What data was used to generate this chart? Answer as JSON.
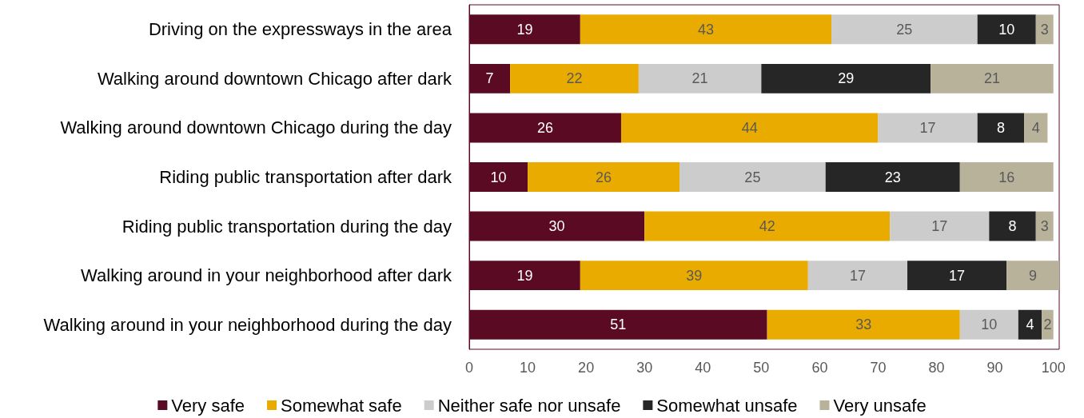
{
  "chart_data": {
    "type": "bar",
    "orientation": "horizontal",
    "stacked": true,
    "data_labels": true,
    "grid": false,
    "legend": "bottom",
    "categories": [
      "Driving on the expressways in the area",
      "Walking around downtown Chicago after dark",
      "Walking around downtown Chicago during the day",
      "Riding public transportation after dark",
      "Riding public transportation during the day",
      "Walking around in your neighborhood after dark",
      "Walking around in your neighborhood during the day"
    ],
    "series": [
      {
        "name": "Very safe",
        "color": "#5b0a24",
        "values": [
          19,
          7,
          26,
          10,
          30,
          19,
          51
        ]
      },
      {
        "name": "Somewhat safe",
        "color": "#eaab00",
        "values": [
          43,
          22,
          44,
          26,
          42,
          39,
          33
        ]
      },
      {
        "name": "Neither safe nor unsafe",
        "color": "#cccccc",
        "values": [
          25,
          21,
          17,
          25,
          17,
          17,
          10
        ]
      },
      {
        "name": "Somewhat unsafe",
        "color": "#262626",
        "values": [
          10,
          29,
          8,
          23,
          8,
          17,
          4
        ]
      },
      {
        "name": "Very unsafe",
        "color": "#b8b29a",
        "values": [
          3,
          21,
          4,
          16,
          3,
          9,
          2
        ]
      }
    ],
    "xlim": [
      0,
      101
    ],
    "xticks": [
      0,
      10,
      20,
      30,
      40,
      50,
      60,
      70,
      80,
      90,
      100
    ]
  }
}
